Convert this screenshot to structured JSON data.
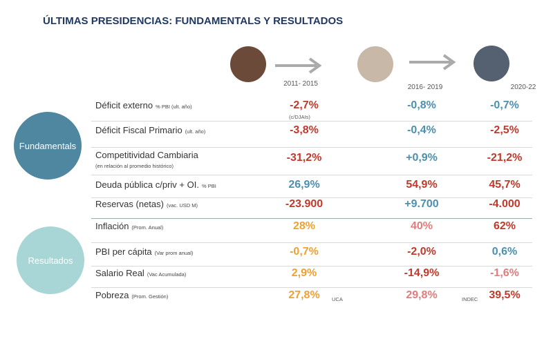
{
  "header": {
    "title": "ÚLTIMAS PRESIDENCIAS: FUNDAMENTALS Y RESULTADOS"
  },
  "periods": [
    "2011- 2015",
    "2016- 2019",
    "2020-22"
  ],
  "groups": [
    "Fundamentals",
    "Resultados"
  ],
  "table": {
    "rows": [
      {
        "label": "Déficit externo",
        "sub": "% PBI (ult. año)",
        "cells": [
          {
            "text": "-2,7%",
            "color": "#c0392b",
            "note": "(c/DJAIs)"
          },
          {
            "text": "-0,8%",
            "color": "#4a90b0"
          },
          {
            "text": "-0,7%",
            "color": "#4a90b0"
          }
        ]
      },
      {
        "label": "Déficit Fiscal Primario",
        "sub": "(ult. año)",
        "cells": [
          {
            "text": "-3,8%",
            "color": "#c0392b"
          },
          {
            "text": "-0,4%",
            "color": "#4a90b0"
          },
          {
            "text": "-2,5%",
            "color": "#c0392b"
          }
        ]
      },
      {
        "label": "Competitividad Cambiaria",
        "sub": "(en relación al promedio histórico)",
        "subBelow": true,
        "cells": [
          {
            "text": "-31,2%",
            "color": "#c0392b"
          },
          {
            "text": "+0,9%",
            "color": "#4a90b0"
          },
          {
            "text": "-21,2%",
            "color": "#c0392b"
          }
        ]
      },
      {
        "label": "Deuda pública c/priv + OI.",
        "sub": "% PBI",
        "cells": [
          {
            "text": "26,9%",
            "color": "#4a90b0"
          },
          {
            "text": "54,9%",
            "color": "#c0392b"
          },
          {
            "text": "45,7%",
            "color": "#c0392b"
          }
        ]
      },
      {
        "label": "Reservas (netas)",
        "sub": "(vac. USD M)",
        "cells": [
          {
            "text": "-23.900",
            "color": "#c0392b"
          },
          {
            "text": "+9.700",
            "color": "#4a90b0"
          },
          {
            "text": "-4.000",
            "color": "#c0392b"
          }
        ]
      },
      {
        "label": "Inflación",
        "sub": "(Prom. Anual)",
        "cells": [
          {
            "text": "28%",
            "color": "#f0a030"
          },
          {
            "text": "40%",
            "color": "#e07c7c"
          },
          {
            "text": "62%",
            "color": "#c0392b"
          }
        ]
      },
      {
        "label": "PBI per cápita",
        "sub": "(Var prom anual)",
        "cells": [
          {
            "text": "-0,7%",
            "color": "#f0a030"
          },
          {
            "text": "-2,0%",
            "color": "#c0392b"
          },
          {
            "text": "0,6%",
            "color": "#4a90b0"
          }
        ]
      },
      {
        "label": "Salario Real",
        "sub": "(Vac Acumulada)",
        "cells": [
          {
            "text": "2,9%",
            "color": "#f0a030"
          },
          {
            "text": "-14,9%",
            "color": "#c0392b"
          },
          {
            "text": "-1,6%",
            "color": "#e07c7c"
          }
        ]
      },
      {
        "label": "Pobreza",
        "sub": "(Prom. Gestión)",
        "cells": [
          {
            "text": "27,8%",
            "color": "#f0a030",
            "note": "UCA"
          },
          {
            "text": "29,8%",
            "color": "#e07c7c"
          },
          {
            "text": "39,5%",
            "color": "#c0392b",
            "note": "INDEC"
          }
        ]
      }
    ]
  }
}
